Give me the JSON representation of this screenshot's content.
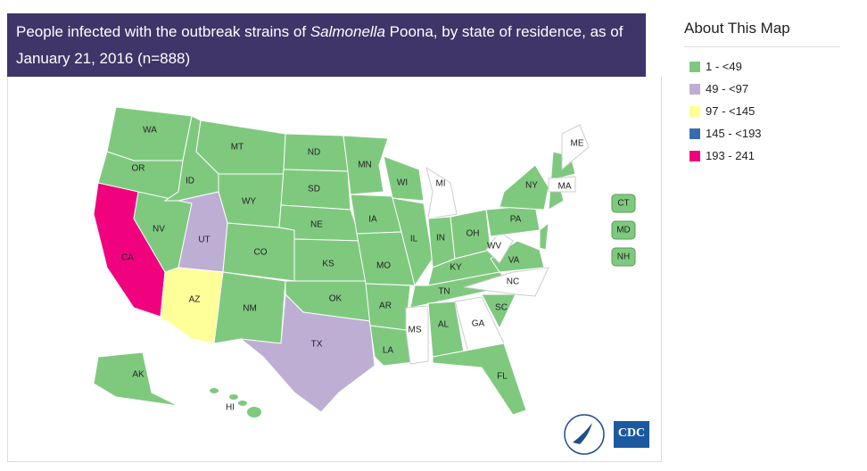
{
  "title": {
    "before": "People infected with the outbreak strains of ",
    "italic": "Salmonella",
    "after": " Poona, by state of residence, as of January 21, 2016 (n=888)"
  },
  "legend": {
    "heading": "About This Map",
    "items": [
      {
        "label": "1 - <49",
        "color": "#7fc97f"
      },
      {
        "label": "49 - <97",
        "color": "#beaed4"
      },
      {
        "label": "97 - <145",
        "color": "#ffff99"
      },
      {
        "label": "145 - <193",
        "color": "#386cb0"
      },
      {
        "label": "193 - 241",
        "color": "#f0027f"
      }
    ]
  },
  "states": [
    {
      "label": "WA",
      "bin": 0
    },
    {
      "label": "OR",
      "bin": 0
    },
    {
      "label": "CA",
      "bin": 4
    },
    {
      "label": "NV",
      "bin": 0
    },
    {
      "label": "ID",
      "bin": 0
    },
    {
      "label": "MT",
      "bin": 0
    },
    {
      "label": "WY",
      "bin": 0
    },
    {
      "label": "UT",
      "bin": 1
    },
    {
      "label": "CO",
      "bin": 0
    },
    {
      "label": "AZ",
      "bin": 2
    },
    {
      "label": "NM",
      "bin": 0
    },
    {
      "label": "ND",
      "bin": 0
    },
    {
      "label": "SD",
      "bin": 0
    },
    {
      "label": "NE",
      "bin": 0
    },
    {
      "label": "KS",
      "bin": 0
    },
    {
      "label": "OK",
      "bin": 0
    },
    {
      "label": "TX",
      "bin": 1
    },
    {
      "label": "MN",
      "bin": 0
    },
    {
      "label": "IA",
      "bin": 0
    },
    {
      "label": "MO",
      "bin": 0
    },
    {
      "label": "AR",
      "bin": 0
    },
    {
      "label": "LA",
      "bin": 0
    },
    {
      "label": "WI",
      "bin": 0
    },
    {
      "label": "IL",
      "bin": 0
    },
    {
      "label": "MI",
      "bin": null
    },
    {
      "label": "IN",
      "bin": 0
    },
    {
      "label": "OH",
      "bin": 0
    },
    {
      "label": "KY",
      "bin": 0
    },
    {
      "label": "TN",
      "bin": 0
    },
    {
      "label": "MS",
      "bin": null
    },
    {
      "label": "AL",
      "bin": 0
    },
    {
      "label": "GA",
      "bin": null
    },
    {
      "label": "FL",
      "bin": 0
    },
    {
      "label": "SC",
      "bin": 0
    },
    {
      "label": "NC",
      "bin": null
    },
    {
      "label": "VA",
      "bin": 0
    },
    {
      "label": "WV",
      "bin": null
    },
    {
      "label": "PA",
      "bin": 0
    },
    {
      "label": "NY",
      "bin": 0
    },
    {
      "label": "ME",
      "bin": null
    },
    {
      "label": "MA",
      "bin": null
    },
    {
      "label": "AK",
      "bin": 0
    },
    {
      "label": "HI",
      "bin": null
    },
    {
      "label": "CT",
      "bin": 0
    },
    {
      "label": "MD",
      "bin": 0
    },
    {
      "label": "NH",
      "bin": 0
    }
  ],
  "logo": "CDC"
}
